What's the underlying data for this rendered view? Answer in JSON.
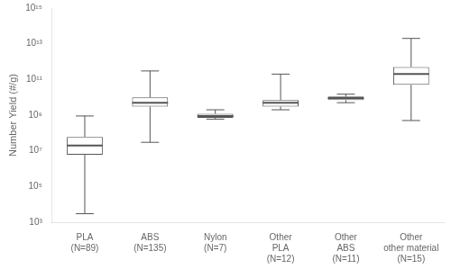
{
  "chart_data": {
    "type": "box",
    "categories": [
      "PLA\n(N=89)",
      "ABS\n(N=135)",
      "Nylon\n(N=7)",
      "Other\nPLA\n(N=12)",
      "Other\nABS\n(N=11)",
      "Other\nother material\n(N=15)"
    ],
    "values": [
      {
        "min": 3000.0,
        "q1": 6000000.0,
        "median": 20000000.0,
        "q3": 60000000.0,
        "max": 900000000.0
      },
      {
        "min": 30000000.0,
        "q1": 3000000000.0,
        "median": 5000000000.0,
        "q3": 10000000000.0,
        "max": 300000000000.0
      },
      {
        "min": 600000000.0,
        "q1": 700000000.0,
        "median": 900000000.0,
        "q3": 1200000000.0,
        "max": 2000000000.0
      },
      {
        "min": 2000000000.0,
        "q1": 3000000000.0,
        "median": 5000000000.0,
        "q3": 7000000000.0,
        "max": 200000000000.0
      },
      {
        "min": 5000000000.0,
        "q1": 7000000000.0,
        "median": 9000000000.0,
        "q3": 11000000000.0,
        "max": 15000000000.0
      },
      {
        "min": 500000000.0,
        "q1": 50000000000.0,
        "median": 200000000000.0,
        "q3": 500000000000.0,
        "max": 20000000000000.0
      }
    ],
    "color": "#555555",
    "ylabel": "Number Yield (#/g)",
    "log": "y",
    "ylim": [
      1000,
      1000000000000000
    ],
    "yticks": [
      {
        "value": 1000,
        "label": "10³"
      },
      {
        "value": 100000,
        "label": "10⁵"
      },
      {
        "value": 10000000,
        "label": "10⁷"
      },
      {
        "value": 1000000000,
        "label": "10⁹"
      },
      {
        "value": 100000000000,
        "label": "10¹¹"
      },
      {
        "value": 10000000000000,
        "label": "10¹³"
      },
      {
        "value": 1000000000000000,
        "label": "10¹⁵"
      }
    ],
    "grid": false
  }
}
